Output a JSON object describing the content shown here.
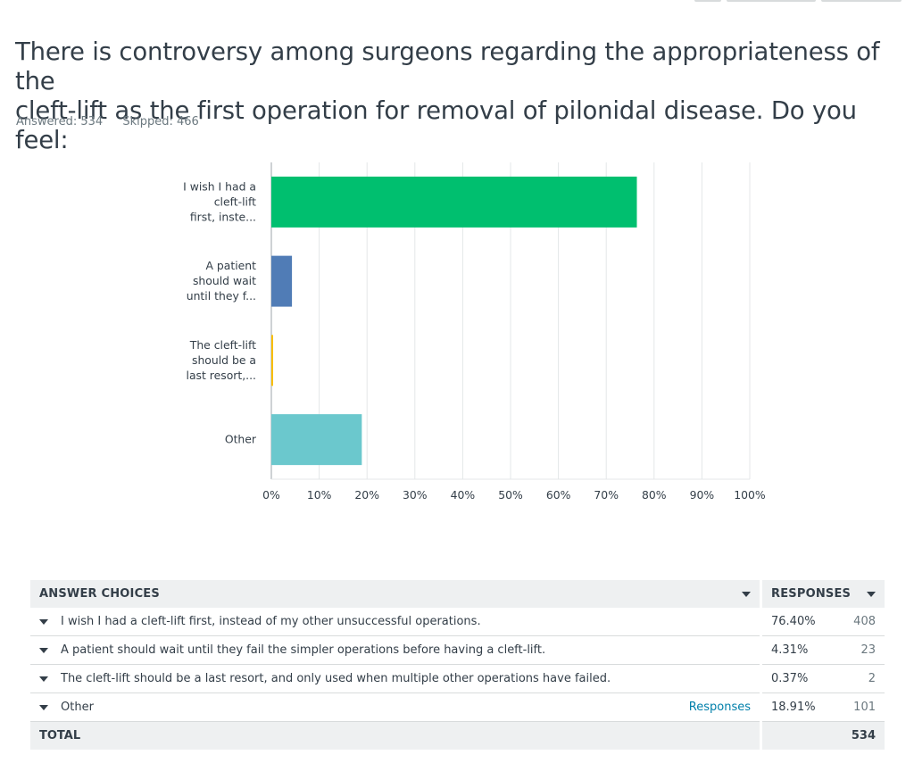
{
  "question": {
    "line1": "There is controversy among surgeons regarding the appropriateness of the",
    "line2": "cleft-lift as the first operation for removal of pilonidal disease. Do you feel:"
  },
  "meta": {
    "answered": "Answered: 534",
    "skipped": "Skipped: 466"
  },
  "chart_data": {
    "type": "bar",
    "orientation": "horizontal",
    "categories": [
      [
        "I wish I had a",
        "cleft-lift",
        "first, inste..."
      ],
      [
        "A patient",
        "should wait",
        "until they f..."
      ],
      [
        "The cleft-lift",
        "should be a",
        "last resort,..."
      ],
      [
        "Other"
      ]
    ],
    "values": [
      76.4,
      4.31,
      0.37,
      18.91
    ],
    "colors": [
      "#00bf6f",
      "#507cb6",
      "#f9be00",
      "#6bc8cd"
    ],
    "ticks": [
      "0%",
      "10%",
      "20%",
      "30%",
      "40%",
      "50%",
      "60%",
      "70%",
      "80%",
      "90%",
      "100%"
    ],
    "xlim": [
      0,
      100
    ],
    "grid": true
  },
  "table": {
    "header_choices": "ANSWER CHOICES",
    "header_responses": "RESPONSES",
    "rows": [
      {
        "label": "I wish I had a cleft-lift first, instead of my other unsuccessful operations.",
        "link": "",
        "pct": "76.40%",
        "count": "408"
      },
      {
        "label": "A patient should wait until they fail the simpler operations before having a cleft-lift.",
        "link": "",
        "pct": "4.31%",
        "count": "23"
      },
      {
        "label": "The cleft-lift should be a last resort, and only used when multiple other operations have failed.",
        "link": "",
        "pct": "0.37%",
        "count": "2"
      },
      {
        "label": "Other",
        "link": "Responses",
        "pct": "18.91%",
        "count": "101"
      }
    ],
    "total_label": "TOTAL",
    "total_count": "534"
  }
}
